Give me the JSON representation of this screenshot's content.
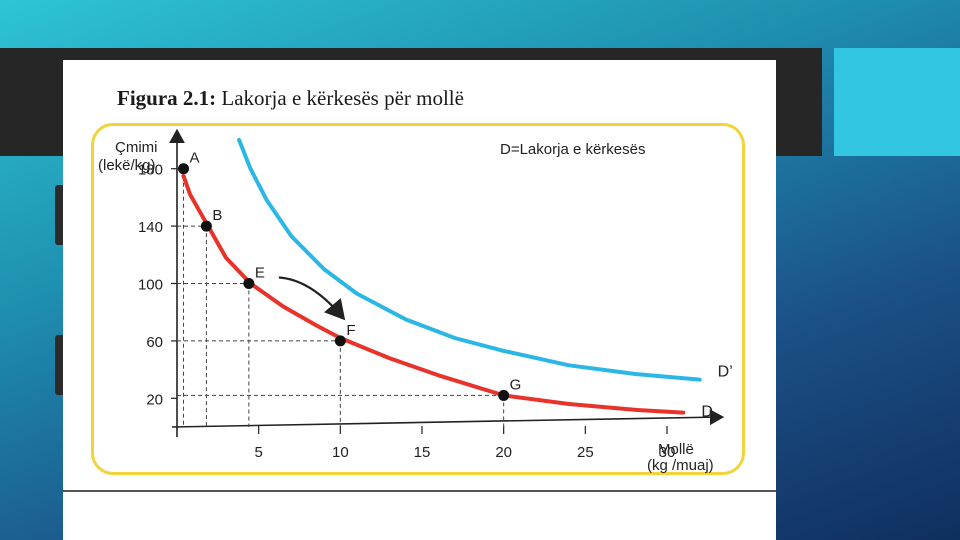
{
  "figure": {
    "title_bold": "Figura 2.1:",
    "title_rest": " Lakorja e kërkesës për mollë"
  },
  "colors": {
    "d_curve": "#e8332a",
    "d_prime_curve": "#2bb7e6",
    "frame": "#f2d33a"
  },
  "chart_data": {
    "type": "line",
    "xlabel": [
      "Mollë",
      "(kg /muaj)"
    ],
    "ylabel": [
      "Çmimi",
      "(lekë/kg)"
    ],
    "x_ticks": [
      5,
      10,
      15,
      20,
      25,
      30
    ],
    "y_ticks": [
      20,
      60,
      100,
      140,
      180
    ],
    "xlim": [
      0,
      33
    ],
    "ylim": [
      0,
      200
    ],
    "legend_text": "D=Lakorja e kërkesës",
    "series": [
      {
        "name": "D",
        "color": "#e8332a",
        "x": [
          0.4,
          0.8,
          1.4,
          2.0,
          3.0,
          4.5,
          6.5,
          8.5,
          10.0,
          13.0,
          16.0,
          20.0,
          24.0,
          28.0,
          31.0
        ],
        "y": [
          175,
          162,
          150,
          138,
          118,
          100,
          84,
          71,
          62,
          48,
          36,
          22,
          16,
          12,
          10
        ]
      },
      {
        "name": "D’",
        "color": "#2bb7e6",
        "x": [
          3.8,
          4.5,
          5.5,
          7.0,
          9.0,
          11.0,
          14.0,
          17.0,
          20.0,
          24.0,
          28.0,
          32.0
        ],
        "y": [
          200,
          180,
          158,
          133,
          110,
          93,
          75,
          62,
          53,
          43,
          37,
          33
        ]
      }
    ],
    "points": [
      {
        "label": "A",
        "x": 0.4,
        "y": 180
      },
      {
        "label": "B",
        "x": 1.8,
        "y": 140
      },
      {
        "label": "E",
        "x": 4.4,
        "y": 100
      },
      {
        "label": "F",
        "x": 10,
        "y": 60
      },
      {
        "label": "G",
        "x": 20,
        "y": 22
      }
    ],
    "arrow": {
      "from": "E",
      "to": "F"
    }
  }
}
